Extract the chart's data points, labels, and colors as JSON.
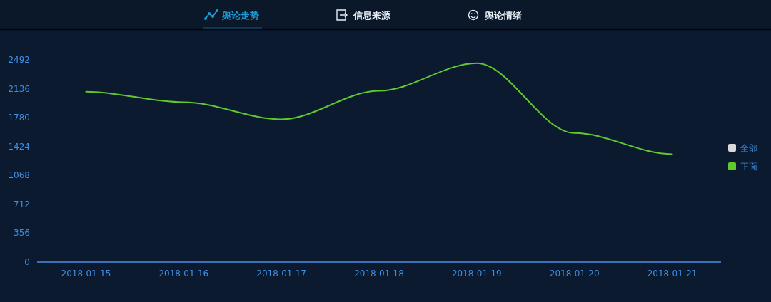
{
  "chart_data": {
    "type": "line",
    "annotations": [
      "舆论走势",
      "信息来源",
      "舆论情绪"
    ],
    "categories": [
      "2018-01-15",
      "2018-01-16",
      "2018-01-17",
      "2018-01-18",
      "2018-01-19",
      "2018-01-20",
      "2018-01-21"
    ],
    "series": [
      {
        "name": "全部",
        "color": "#d9d9d9",
        "values": [
          null,
          null,
          null,
          null,
          null,
          null,
          null
        ]
      },
      {
        "name": "正面",
        "color": "#5fc92e",
        "values": [
          2100,
          1970,
          1760,
          2110,
          2450,
          1590,
          1330
        ]
      }
    ],
    "ylim": [
      0,
      2492
    ],
    "yticks": [
      0,
      356,
      712,
      1068,
      1424,
      1780,
      2136,
      2492
    ],
    "legend": "right",
    "marker": "none",
    "line_style": "solid"
  }
}
